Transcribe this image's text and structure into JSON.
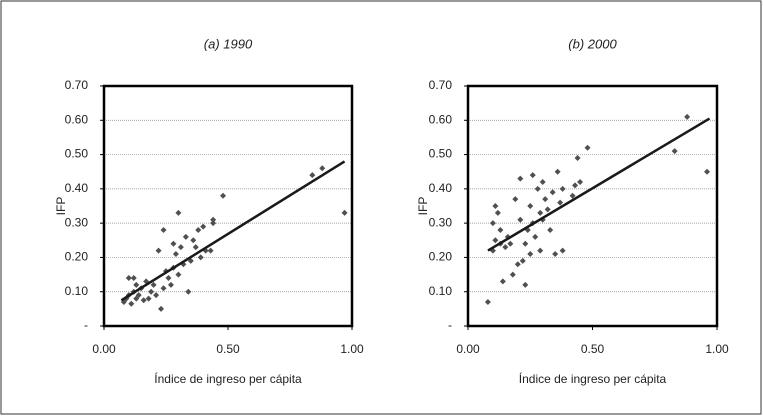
{
  "chart_data": [
    {
      "type": "scatter",
      "title": "(a) 1990",
      "xlabel": "Índice de ingreso per cápita",
      "ylabel": "IFP",
      "xlim": [
        0,
        1
      ],
      "ylim": [
        0,
        0.7
      ],
      "xticks": [
        {
          "value": 0,
          "label": "0.00"
        },
        {
          "value": 0.5,
          "label": "0.50"
        },
        {
          "value": 1,
          "label": "1.00"
        }
      ],
      "yticks": [
        {
          "value": 0,
          "label": "-"
        },
        {
          "value": 0.1,
          "label": "0.10"
        },
        {
          "value": 0.2,
          "label": "0.20"
        },
        {
          "value": 0.3,
          "label": "0.30"
        },
        {
          "value": 0.4,
          "label": "0.40"
        },
        {
          "value": 0.5,
          "label": "0.50"
        },
        {
          "value": 0.6,
          "label": "0.60"
        },
        {
          "value": 0.7,
          "label": "0.70"
        }
      ],
      "grid": true,
      "series": [
        {
          "color": "#505050",
          "x": [
            0.08,
            0.09,
            0.1,
            0.1,
            0.11,
            0.12,
            0.12,
            0.13,
            0.13,
            0.14,
            0.15,
            0.16,
            0.17,
            0.18,
            0.19,
            0.2,
            0.21,
            0.22,
            0.23,
            0.24,
            0.24,
            0.25,
            0.26,
            0.27,
            0.28,
            0.28,
            0.29,
            0.3,
            0.3,
            0.31,
            0.32,
            0.33,
            0.34,
            0.35,
            0.36,
            0.37,
            0.38,
            0.39,
            0.4,
            0.41,
            0.43,
            0.44,
            0.44,
            0.48,
            0.84,
            0.88,
            0.97
          ],
          "values": [
            0.07,
            0.08,
            0.09,
            0.14,
            0.065,
            0.14,
            0.1,
            0.08,
            0.12,
            0.09,
            0.11,
            0.075,
            0.13,
            0.08,
            0.1,
            0.12,
            0.09,
            0.22,
            0.05,
            0.11,
            0.28,
            0.16,
            0.14,
            0.12,
            0.24,
            0.17,
            0.21,
            0.33,
            0.15,
            0.23,
            0.18,
            0.26,
            0.1,
            0.19,
            0.25,
            0.23,
            0.28,
            0.2,
            0.29,
            0.22,
            0.22,
            0.31,
            0.3,
            0.38,
            0.44,
            0.46,
            0.33
          ]
        }
      ],
      "trendline": {
        "color": "#1a1a1a",
        "x": [
          0.07,
          0.97
        ],
        "values": [
          0.075,
          0.48
        ]
      }
    },
    {
      "type": "scatter",
      "title": "(b) 2000",
      "xlabel": "Índice de ingreso per cápita",
      "ylabel": "IFP",
      "xlim": [
        0,
        1
      ],
      "ylim": [
        0,
        0.7
      ],
      "xticks": [
        {
          "value": 0,
          "label": "0.00"
        },
        {
          "value": 0.5,
          "label": "0.50"
        },
        {
          "value": 1,
          "label": "1.00"
        }
      ],
      "yticks": [
        {
          "value": 0,
          "label": "-"
        },
        {
          "value": 0.1,
          "label": "0.10"
        },
        {
          "value": 0.2,
          "label": "0.20"
        },
        {
          "value": 0.3,
          "label": "0.30"
        },
        {
          "value": 0.4,
          "label": "0.40"
        },
        {
          "value": 0.5,
          "label": "0.50"
        },
        {
          "value": 0.6,
          "label": "0.60"
        },
        {
          "value": 0.7,
          "label": "0.70"
        }
      ],
      "grid": true,
      "series": [
        {
          "color": "#505050",
          "x": [
            0.08,
            0.1,
            0.1,
            0.11,
            0.11,
            0.12,
            0.13,
            0.13,
            0.14,
            0.15,
            0.16,
            0.17,
            0.18,
            0.19,
            0.2,
            0.21,
            0.21,
            0.22,
            0.23,
            0.23,
            0.24,
            0.25,
            0.25,
            0.26,
            0.26,
            0.27,
            0.28,
            0.29,
            0.29,
            0.3,
            0.3,
            0.31,
            0.32,
            0.33,
            0.34,
            0.35,
            0.36,
            0.37,
            0.38,
            0.38,
            0.42,
            0.43,
            0.44,
            0.45,
            0.48,
            0.83,
            0.88,
            0.96
          ],
          "values": [
            0.07,
            0.3,
            0.22,
            0.35,
            0.25,
            0.33,
            0.24,
            0.28,
            0.13,
            0.23,
            0.26,
            0.24,
            0.15,
            0.37,
            0.18,
            0.43,
            0.31,
            0.19,
            0.24,
            0.12,
            0.28,
            0.35,
            0.21,
            0.44,
            0.3,
            0.26,
            0.4,
            0.22,
            0.33,
            0.42,
            0.31,
            0.37,
            0.34,
            0.28,
            0.39,
            0.21,
            0.45,
            0.36,
            0.22,
            0.4,
            0.38,
            0.41,
            0.49,
            0.42,
            0.52,
            0.51,
            0.61,
            0.45
          ]
        }
      ],
      "trendline": {
        "color": "#1a1a1a",
        "x": [
          0.08,
          0.97
        ],
        "values": [
          0.22,
          0.605
        ]
      }
    }
  ]
}
